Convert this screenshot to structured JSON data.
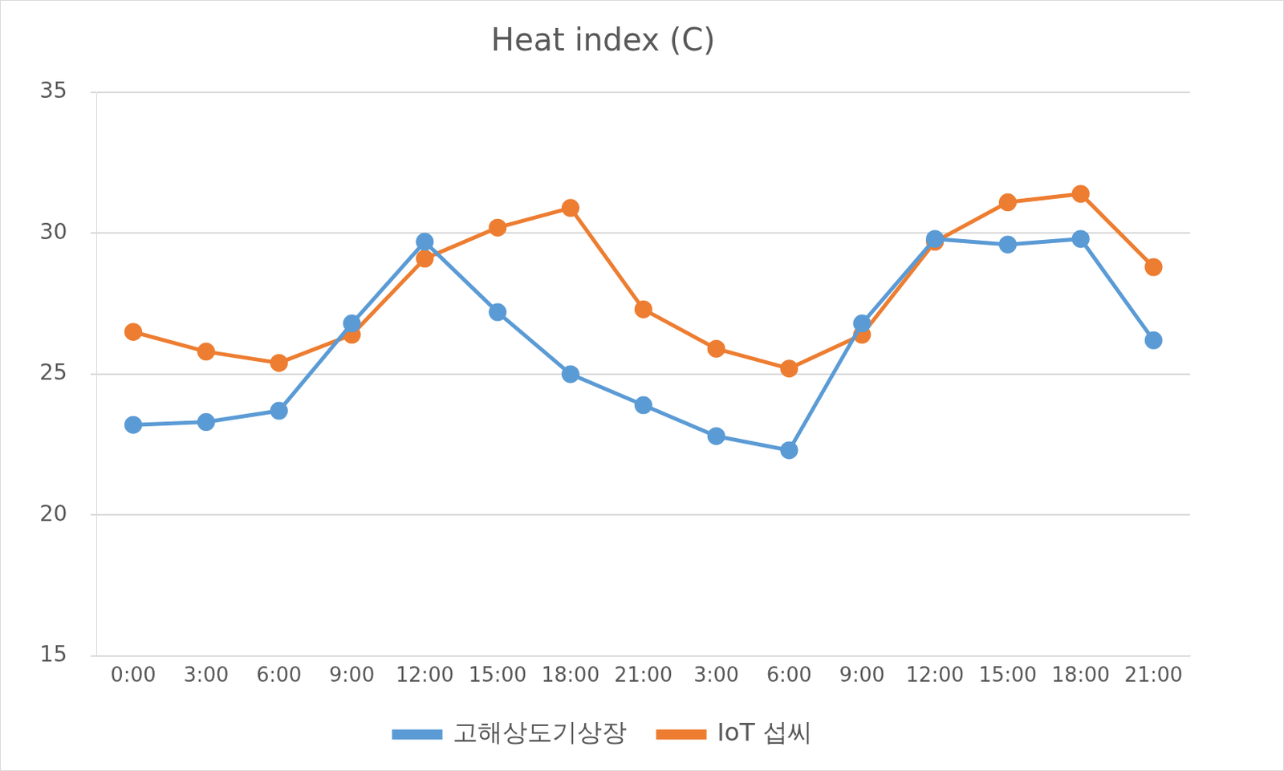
{
  "chart_data": {
    "type": "line",
    "title": "Heat index (C)",
    "categories": [
      "0:00",
      "3:00",
      "6:00",
      "9:00",
      "12:00",
      "15:00",
      "18:00",
      "21:00",
      "3:00",
      "6:00",
      "9:00",
      "12:00",
      "15:00",
      "18:00",
      "21:00"
    ],
    "series": [
      {
        "name": "고해상도기상장",
        "color": "#5b9bd5",
        "marker": "circle",
        "values": [
          23.2,
          23.3,
          23.7,
          26.8,
          29.7,
          27.2,
          25.0,
          23.9,
          22.8,
          22.3,
          26.8,
          29.8,
          29.6,
          29.8,
          26.2
        ]
      },
      {
        "name": "IoT 섭씨",
        "color": "#ed7d31",
        "marker": "circle",
        "values": [
          26.5,
          25.8,
          25.4,
          26.4,
          29.1,
          30.2,
          30.9,
          27.3,
          25.9,
          25.2,
          26.4,
          29.7,
          31.1,
          31.4,
          28.8
        ]
      }
    ],
    "ylim": [
      15,
      35
    ],
    "yticks": [
      15,
      20,
      25,
      30,
      35
    ],
    "grid": true,
    "legend": "bottom"
  }
}
